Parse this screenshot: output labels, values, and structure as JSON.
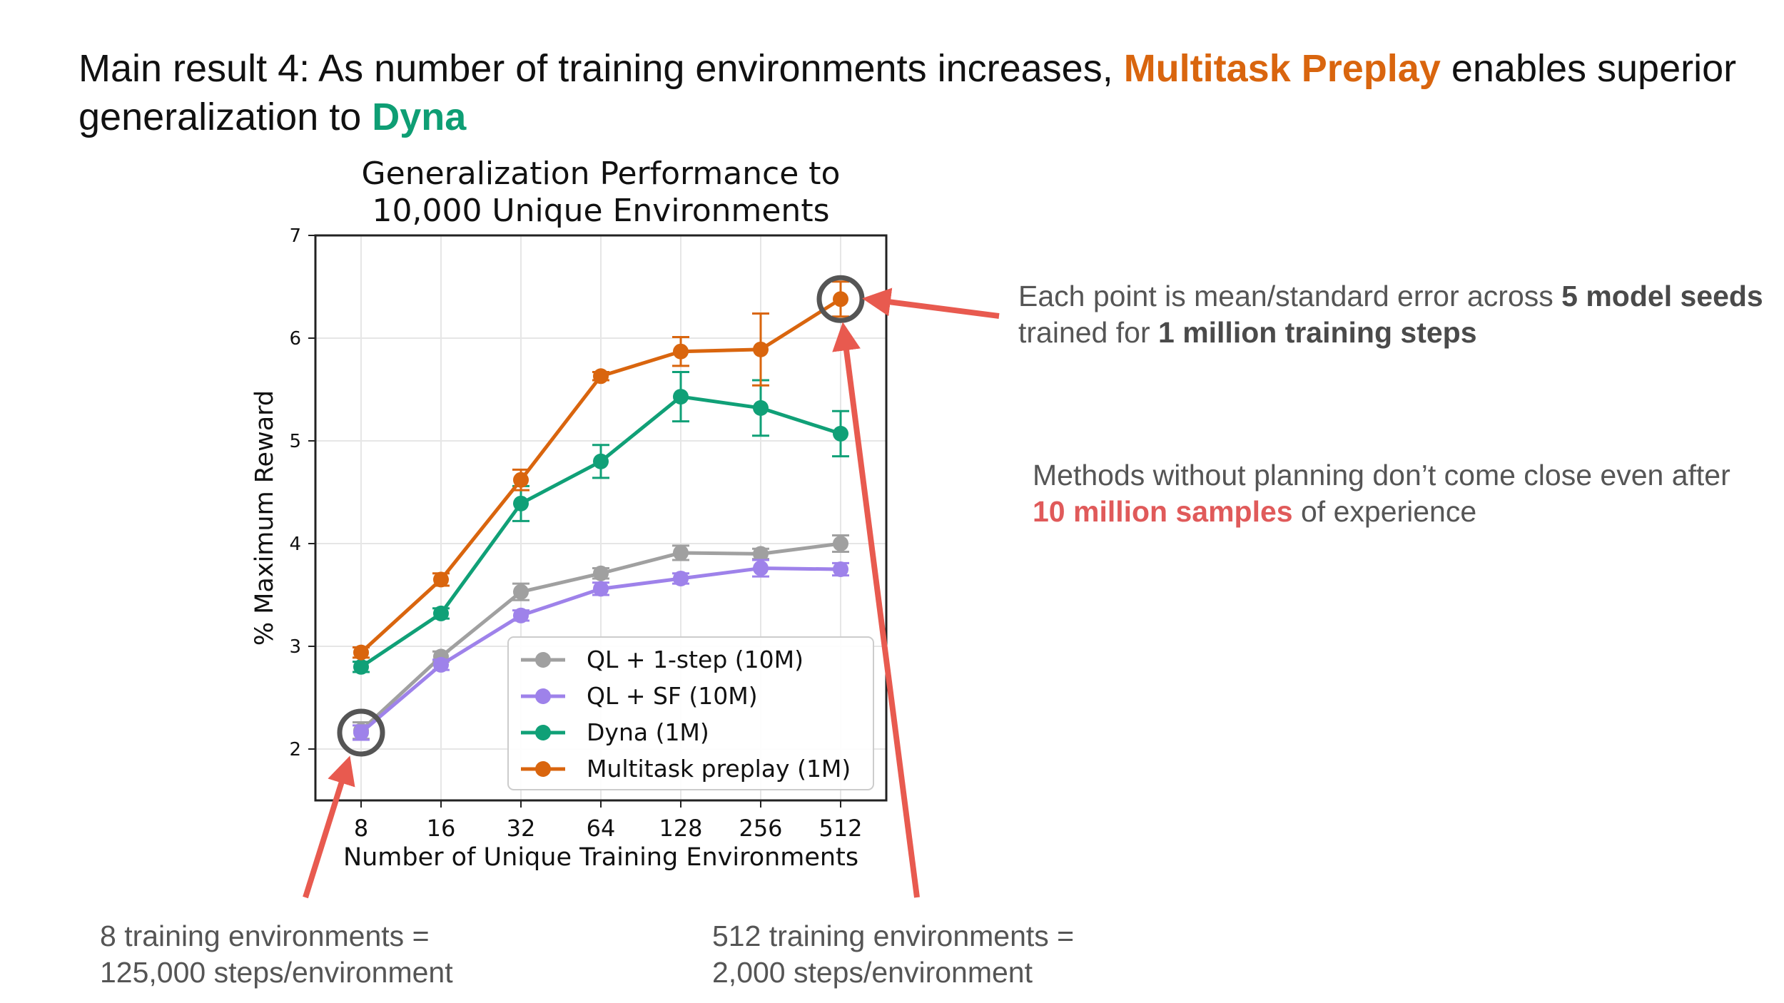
{
  "headline": {
    "prefix": "Main result 4: As number of training environments increases, ",
    "highlight1": "Multitask Preplay",
    "middle": " enables superior generalization to ",
    "highlight2": "Dyna"
  },
  "notes": {
    "seeds": {
      "part1": "Each point is mean/standard error across ",
      "bold1": "5 model seeds",
      "part2": " trained for ",
      "bold2": "1 million training steps"
    },
    "planning": {
      "part1": "Methods without planning don’t come close even after ",
      "red": "10 million samples",
      "part2": " of experience"
    },
    "env8": {
      "line1": "8 training environments =",
      "line2": "125,000 steps/environment"
    },
    "env512": {
      "line1": "512 training environments =",
      "line2": "2,000 steps/environment"
    }
  },
  "colors": {
    "ql1": "#a0a0a0",
    "qlsf": "#9e82ea",
    "dyna": "#10a077",
    "preplay": "#d9650e",
    "arrow": "#e85a4f",
    "highlight_orange": "#d9650e",
    "highlight_green": "#0e9e74"
  },
  "chart_data": {
    "type": "line",
    "title": [
      "Generalization Performance to",
      "10,000 Unique Environments"
    ],
    "xlabel": "Number of Unique Training Environments",
    "ylabel": "% Maximum Reward",
    "categories": [
      "8",
      "16",
      "32",
      "64",
      "128",
      "256",
      "512"
    ],
    "ylim": [
      1.5,
      7
    ],
    "yticks": [
      2,
      3,
      4,
      5,
      6,
      7
    ],
    "grid": true,
    "legend_position": "lower-right",
    "series": [
      {
        "name": "QL + 1-step (10M)",
        "color": "#a0a0a0",
        "values": [
          2.18,
          2.9,
          3.53,
          3.71,
          3.91,
          3.9,
          4.0
        ],
        "errors": [
          0.08,
          0.05,
          0.08,
          0.05,
          0.07,
          0.05,
          0.08
        ]
      },
      {
        "name": "QL + SF (10M)",
        "color": "#9e82ea",
        "values": [
          2.16,
          2.82,
          3.3,
          3.56,
          3.66,
          3.76,
          3.75
        ],
        "errors": [
          0.07,
          0.05,
          0.05,
          0.06,
          0.05,
          0.08,
          0.06
        ]
      },
      {
        "name": "Dyna (1M)",
        "color": "#10a077",
        "values": [
          2.8,
          3.32,
          4.39,
          4.8,
          5.43,
          5.32,
          5.07
        ],
        "errors": [
          0.05,
          0.05,
          0.17,
          0.16,
          0.24,
          0.27,
          0.22
        ]
      },
      {
        "name": "Multitask preplay (1M)",
        "color": "#d9650e",
        "values": [
          2.94,
          3.65,
          4.62,
          5.63,
          5.87,
          5.89,
          6.38
        ],
        "errors": [
          0.05,
          0.06,
          0.1,
          0.04,
          0.14,
          0.35,
          0.17
        ]
      }
    ],
    "annotations": [
      {
        "target": "QL + SF (10M) at 8",
        "style": "circle"
      },
      {
        "target": "Multitask preplay (1M) at 512",
        "style": "circle"
      }
    ]
  }
}
